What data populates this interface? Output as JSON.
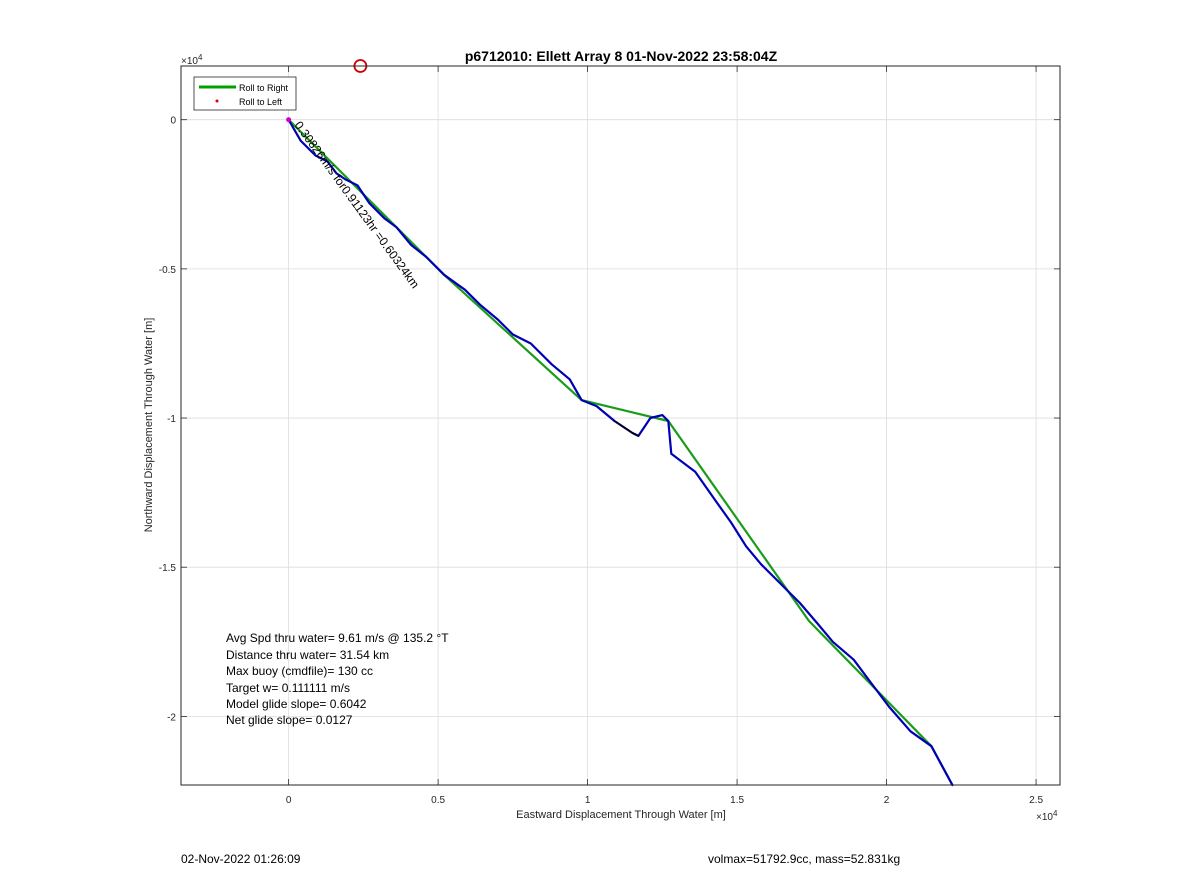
{
  "chart_data": {
    "type": "line",
    "title": "p6712010: Ellett Array 8 01-Nov-2022 23:58:04Z",
    "xlabel": "Eastward Displacement Through Water [m]",
    "ylabel": "Northward Displacement Through Water [m]",
    "x_exponent_label": "×10",
    "x_exponent": "4",
    "y_exponent_label": "×10",
    "y_exponent": "4",
    "xlim": [
      -3600,
      25800
    ],
    "ylim": [
      -22300,
      1800
    ],
    "grid": true,
    "x_ticks": [
      {
        "value": 0,
        "label": "0"
      },
      {
        "value": 5000,
        "label": "0.5"
      },
      {
        "value": 10000,
        "label": "1"
      },
      {
        "value": 15000,
        "label": "1.5"
      },
      {
        "value": 20000,
        "label": "2"
      },
      {
        "value": 25000,
        "label": "2.5"
      }
    ],
    "y_ticks": [
      {
        "value": 0,
        "label": "0"
      },
      {
        "value": -5000,
        "label": "-0.5"
      },
      {
        "value": -10000,
        "label": "-1"
      },
      {
        "value": -15000,
        "label": "-1.5"
      },
      {
        "value": -20000,
        "label": "-2"
      }
    ],
    "legend": {
      "position": "top-left",
      "entries": [
        {
          "label": "Roll to Right",
          "color": "#00a000",
          "marker": "line"
        },
        {
          "label": "Roll to Left",
          "color": "#e00000",
          "marker": "dot"
        }
      ]
    },
    "series": [
      {
        "color": "#1a9c1a",
        "points": [
          [
            0,
            0
          ],
          [
            5200,
            -5200
          ],
          [
            9800,
            -9400
          ],
          [
            12700,
            -10100
          ],
          [
            17400,
            -16800
          ],
          [
            21500,
            -21000
          ],
          [
            22200,
            -22300
          ]
        ]
      },
      {
        "color": "#0000b4",
        "points": [
          [
            0,
            0
          ],
          [
            400,
            -700
          ],
          [
            900,
            -1200
          ],
          [
            1300,
            -1400
          ],
          [
            1600,
            -1800
          ],
          [
            1900,
            -2000
          ],
          [
            2300,
            -2200
          ],
          [
            2700,
            -2800
          ],
          [
            3200,
            -3300
          ],
          [
            3600,
            -3600
          ],
          [
            4100,
            -4200
          ],
          [
            4600,
            -4600
          ],
          [
            5200,
            -5200
          ],
          [
            5900,
            -5700
          ],
          [
            6400,
            -6200
          ],
          [
            7000,
            -6700
          ],
          [
            7500,
            -7200
          ],
          [
            8100,
            -7500
          ],
          [
            8800,
            -8200
          ],
          [
            9400,
            -8700
          ],
          [
            9800,
            -9400
          ],
          [
            10300,
            -9600
          ],
          [
            10900,
            -10100
          ],
          [
            11500,
            -10500
          ],
          [
            11700,
            -10600
          ],
          [
            12100,
            -10000
          ],
          [
            12500,
            -9900
          ],
          [
            12700,
            -10100
          ],
          [
            12800,
            -11200
          ],
          [
            13600,
            -11800
          ],
          [
            14300,
            -12800
          ],
          [
            14800,
            -13500
          ],
          [
            15300,
            -14300
          ],
          [
            15800,
            -14900
          ],
          [
            16400,
            -15500
          ],
          [
            17100,
            -16200
          ],
          [
            17700,
            -16900
          ],
          [
            18200,
            -17500
          ],
          [
            18900,
            -18100
          ],
          [
            19500,
            -18900
          ],
          [
            20100,
            -19700
          ],
          [
            20800,
            -20500
          ],
          [
            21500,
            -21000
          ],
          [
            22200,
            -22300
          ]
        ]
      },
      {
        "color": "#000000",
        "points": [
          [
            10900,
            -10100
          ],
          [
            11500,
            -10500
          ],
          [
            11700,
            -10600
          ]
        ]
      }
    ],
    "annotations": [
      {
        "text": "0.30826m/s for0.91123hr =0.60324km",
        "x": 150,
        "y": -200,
        "rotation_deg": 54
      },
      {
        "text": "Avg Spd thru water=  9.61 m/s @ 135.2 °T"
      },
      {
        "text": "Distance thru water= 31.54 km"
      },
      {
        "text": "Max buoy (cmdfile)= 130 cc"
      },
      {
        "text": "Target w= 0.111111 m/s"
      },
      {
        "text": "Model glide slope= 0.6042"
      },
      {
        "text": "Net glide slope= 0.0127"
      }
    ],
    "markers": [
      {
        "type": "circle",
        "color": "#cc0000",
        "x": 2400,
        "y": 1800
      },
      {
        "type": "point",
        "color": "#cc00cc",
        "x": 0,
        "y": 0
      }
    ]
  },
  "footer": {
    "left": "02-Nov-2022 01:26:09",
    "right": "volmax=51792.9cc, mass=52.831kg"
  }
}
